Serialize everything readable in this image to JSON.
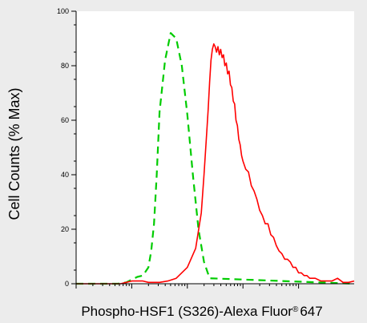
{
  "chart_data": {
    "type": "line",
    "title": "",
    "xlabel": "Phospho-HSF1 (S326)-Alexa Fluor",
    "xlabel_mark": "®",
    "xlabel_suffix": "647",
    "ylabel": "Cell Counts (% Max)",
    "xscale": "log",
    "xlim": [
      0,
      100
    ],
    "ylim": [
      0,
      100
    ],
    "yticks": [
      0,
      20,
      40,
      60,
      80,
      100
    ],
    "ytick_labels": [
      "0",
      "20",
      "40",
      "60",
      "80",
      "100"
    ],
    "grid": false,
    "legend": "none",
    "series": [
      {
        "color": "#00cc00",
        "style": "dashed",
        "x": [
          0,
          10,
          15,
          18,
          20,
          22,
          24,
          26,
          27,
          28,
          29,
          30,
          32,
          34,
          36,
          38,
          40,
          42,
          44,
          46,
          48,
          100
        ],
        "y": [
          0,
          0,
          0,
          0.5,
          1.5,
          2.5,
          3,
          6,
          12,
          22,
          40,
          63,
          82,
          92,
          90,
          80,
          62,
          40,
          20,
          8,
          2,
          0
        ]
      },
      {
        "color": "#ff0000",
        "style": "solid",
        "x": [
          0,
          16,
          18,
          20,
          22,
          24,
          26,
          30,
          33,
          36,
          40,
          43,
          45,
          46,
          47,
          47.5,
          48,
          48.5,
          49,
          49.5,
          50,
          50.5,
          51,
          51.5,
          52,
          52.5,
          53,
          53.5,
          54,
          54.5,
          55,
          55.5,
          56,
          56.5,
          57,
          57.5,
          58,
          58.5,
          59,
          59.5,
          60,
          61,
          62,
          63,
          64,
          65,
          66,
          67,
          68,
          69,
          70,
          71,
          72,
          73,
          74,
          75,
          76,
          77,
          78,
          79,
          80,
          81,
          82,
          83,
          84,
          86,
          88,
          90,
          92,
          94,
          96,
          98,
          100
        ],
        "y": [
          0,
          0,
          0.5,
          1,
          1,
          1,
          0.5,
          0.5,
          1,
          2,
          6,
          13,
          26,
          40,
          56,
          64,
          74,
          82,
          86,
          88,
          87,
          85,
          87,
          84,
          86,
          83,
          84,
          80,
          81,
          77,
          78,
          73,
          72,
          67,
          66,
          60,
          58,
          53,
          51,
          47,
          45,
          42,
          41,
          36,
          34,
          31,
          27,
          25,
          22,
          22,
          18,
          17,
          14,
          12,
          11,
          9,
          9,
          8,
          6,
          6,
          4,
          4,
          3,
          3,
          2,
          2,
          1,
          1,
          1,
          2,
          0.5,
          0.5,
          1
        ]
      }
    ]
  }
}
